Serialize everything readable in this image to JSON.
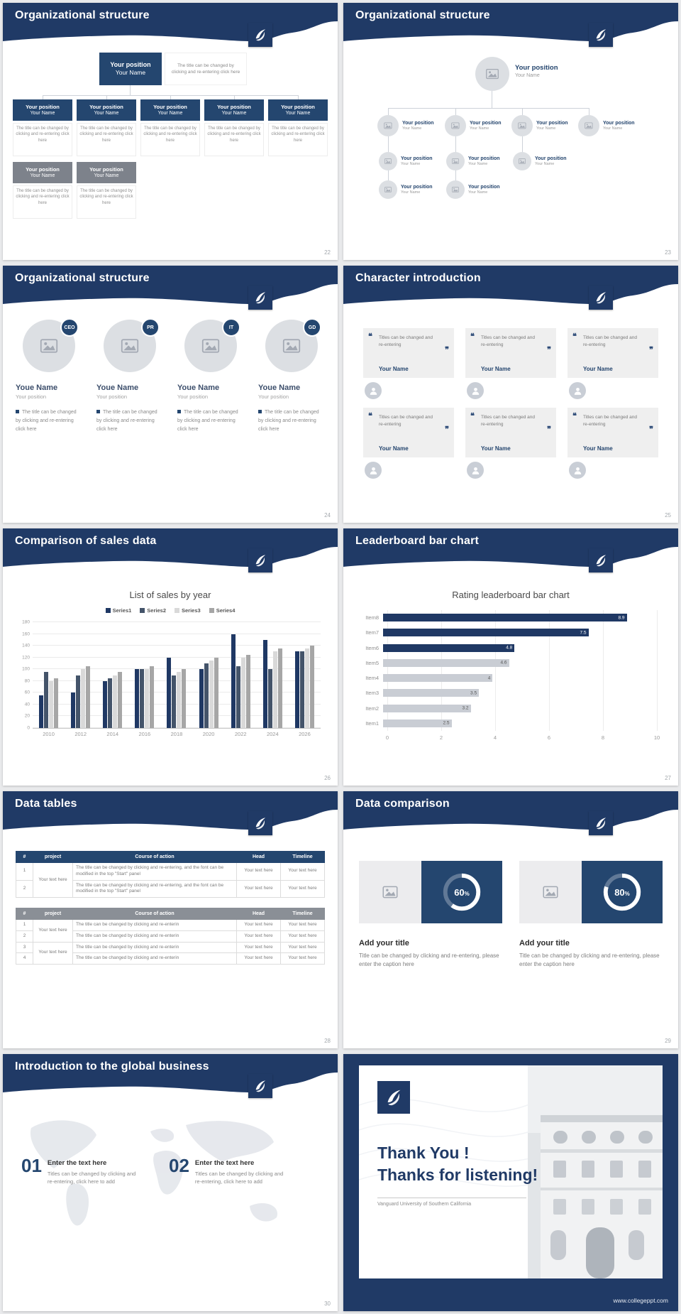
{
  "brand": {
    "navy": "#203a66",
    "navy2": "#24466f",
    "gray_box": "#7d828b"
  },
  "slides": {
    "s22": {
      "title": "Organizational structure",
      "page_no": "22",
      "node": {
        "position": "Your position",
        "name": "Your Name"
      },
      "desc": "The title can be changed by clicking and re-entering click here"
    },
    "s23": {
      "title": "Organizational structure",
      "page_no": "23",
      "node": {
        "position": "Your position",
        "name": "Your Name"
      }
    },
    "s24": {
      "title": "Organizational structure",
      "page_no": "24",
      "badges": [
        "CEO",
        "PR",
        "IT",
        "GD"
      ],
      "name": "Youe Name",
      "position": "Your position",
      "desc": "The title can be changed by clicking and re-entering click here"
    },
    "s25": {
      "title": "Character introduction",
      "page_no": "25",
      "quote_open": "❝",
      "quote_close": "❞",
      "quote": "Titles can be changed and re-entering",
      "name": "Your Name"
    },
    "s26": {
      "title": "Comparison of sales data",
      "page_no": "26",
      "chart_data": {
        "type": "bar",
        "title": "List of sales by year",
        "categories": [
          "2010",
          "2012",
          "2014",
          "2016",
          "2018",
          "2020",
          "2022",
          "2024",
          "2026"
        ],
        "series": [
          {
            "name": "Series1",
            "color": "#1F3864",
            "values": [
              55,
              60,
              80,
              100,
              120,
              100,
              160,
              150,
              130
            ]
          },
          {
            "name": "Series2",
            "color": "#44546A",
            "values": [
              95,
              90,
              85,
              100,
              90,
              110,
              105,
              100,
              130
            ]
          },
          {
            "name": "Series3",
            "color": "#D9D9D9",
            "values": [
              80,
              100,
              90,
              100,
              95,
              115,
              120,
              130,
              135
            ]
          },
          {
            "name": "Series4",
            "color": "#A6A6A6",
            "values": [
              85,
              105,
              95,
              105,
              100,
              120,
              125,
              135,
              140
            ]
          }
        ],
        "ylim": [
          0,
          180
        ],
        "ytick_step": 20,
        "grid": true,
        "legend_position": "top"
      }
    },
    "s27": {
      "title": "Leaderboard bar chart",
      "page_no": "27",
      "chart_data": {
        "type": "bar",
        "orientation": "horizontal",
        "title": "Rating leaderboard bar chart",
        "categories": [
          "Item8",
          "Item7",
          "Item6",
          "Item5",
          "Item4",
          "Item3",
          "Item2",
          "Item1"
        ],
        "values": [
          8.9,
          7.5,
          4.8,
          4.6,
          4,
          3.5,
          3.2,
          2.5
        ],
        "colors": [
          "#1F3864",
          "#1F3864",
          "#1F3864",
          "#C9CDD4",
          "#C9CDD4",
          "#C9CDD4",
          "#C9CDD4",
          "#C9CDD4"
        ],
        "xlim": [
          0,
          10
        ],
        "xticks": [
          0,
          2,
          4,
          6,
          8,
          10
        ],
        "grid": true
      }
    },
    "s28": {
      "title": "Data tables",
      "page_no": "28",
      "table_a": {
        "headers": [
          "#",
          "project",
          "Course of action",
          "Head",
          "Timeline"
        ],
        "project": "Your text here",
        "rows": [
          {
            "num": "1",
            "course": "The title can be changed by clicking and re-entering, and the font can be modified in the top \"Start\" panel",
            "head": "Your text here",
            "timeline": "Your text here"
          },
          {
            "num": "2",
            "course": "The title can be changed by clicking and re-entering, and the font can be modified in the top \"Start\" panel",
            "head": "Your text here",
            "timeline": "Your text here"
          }
        ]
      },
      "table_b": {
        "headers": [
          "#",
          "project",
          "Course of action",
          "Head",
          "Timeline"
        ],
        "project": "Your text here",
        "rows": [
          {
            "num": "1",
            "course": "The title can be changed by clicking and re-enterin",
            "head": "Your text here",
            "timeline": "Your text here"
          },
          {
            "num": "2",
            "course": "The title can be changed by clicking and re-enterin",
            "head": "Your text here",
            "timeline": "Your text here"
          },
          {
            "num": "3",
            "course": "The title can be changed by clicking and re-enterin",
            "head": "Your text here",
            "timeline": "Your text here"
          },
          {
            "num": "4",
            "course": "The title can be changed by clicking and re-enterin",
            "head": "Your text here",
            "timeline": "Your text here"
          }
        ]
      }
    },
    "s29": {
      "title": "Data comparison",
      "page_no": "29",
      "unit": "%",
      "items": [
        {
          "percent": 60,
          "percent_label": "60",
          "title": "Add your title",
          "desc": "Title can be changed by clicking and re-entering, please enter the caption here"
        },
        {
          "percent": 80,
          "percent_label": "80",
          "title": "Add your title",
          "desc": "Title can be changed by clicking and re-entering, please enter the caption here"
        }
      ]
    },
    "s30": {
      "title": "Introduction to the global business",
      "page_no": "30",
      "items": [
        {
          "num": "01",
          "title": "Enter the text here",
          "desc": "Titles can be changed by clicking and re-entering, click here to add"
        },
        {
          "num": "02",
          "title": "Enter the text here",
          "desc": "Titles can be changed by clicking and re-entering, click here to add"
        }
      ]
    },
    "thanks": {
      "line1": "Thank You !",
      "line2": "Thanks for listening!",
      "subtitle": "Vanguard University of Southern California",
      "footer_url": "www.collegeppt.com"
    }
  }
}
